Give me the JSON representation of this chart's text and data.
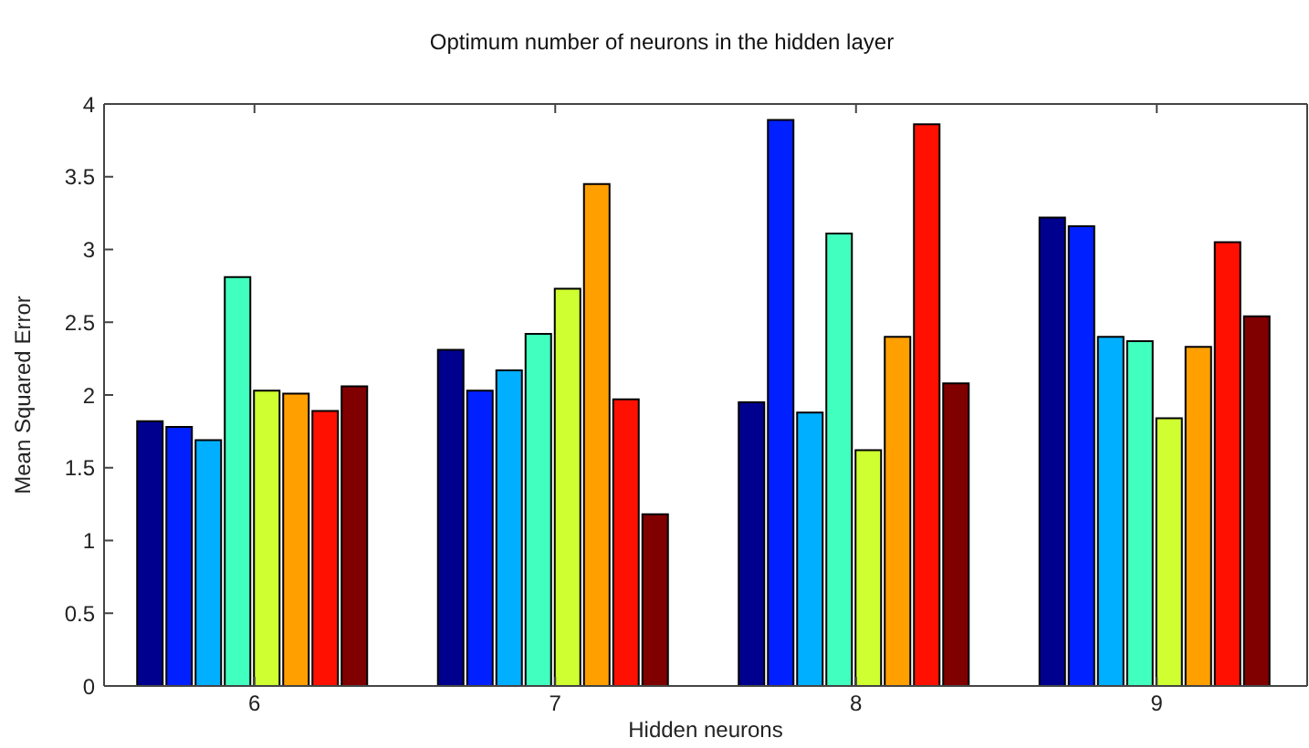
{
  "chart_data": {
    "type": "bar",
    "title": "Optimum number of neurons in the hidden layer",
    "xlabel": "Hidden neurons",
    "ylabel": "Mean Squared Error",
    "categories": [
      "6",
      "7",
      "8",
      "9"
    ],
    "series": [
      {
        "color": "#00008f",
        "values": [
          1.82,
          2.31,
          1.95,
          3.22
        ]
      },
      {
        "color": "#0020ff",
        "values": [
          1.78,
          2.03,
          3.89,
          3.16
        ]
      },
      {
        "color": "#00afff",
        "values": [
          1.69,
          2.17,
          1.88,
          2.4
        ]
      },
      {
        "color": "#40ffbf",
        "values": [
          2.81,
          2.42,
          3.11,
          2.37
        ]
      },
      {
        "color": "#cfff30",
        "values": [
          2.03,
          2.73,
          1.62,
          1.84
        ]
      },
      {
        "color": "#ff9f00",
        "values": [
          2.01,
          3.45,
          2.4,
          2.33
        ]
      },
      {
        "color": "#ff1000",
        "values": [
          1.89,
          1.97,
          3.86,
          3.05
        ]
      },
      {
        "color": "#800000",
        "values": [
          2.06,
          1.18,
          2.08,
          2.54
        ]
      }
    ],
    "ylim": [
      0,
      4
    ],
    "yticks": [
      0,
      0.5,
      1,
      1.5,
      2,
      2.5,
      3,
      3.5,
      4
    ],
    "grid": false,
    "legend": false
  }
}
